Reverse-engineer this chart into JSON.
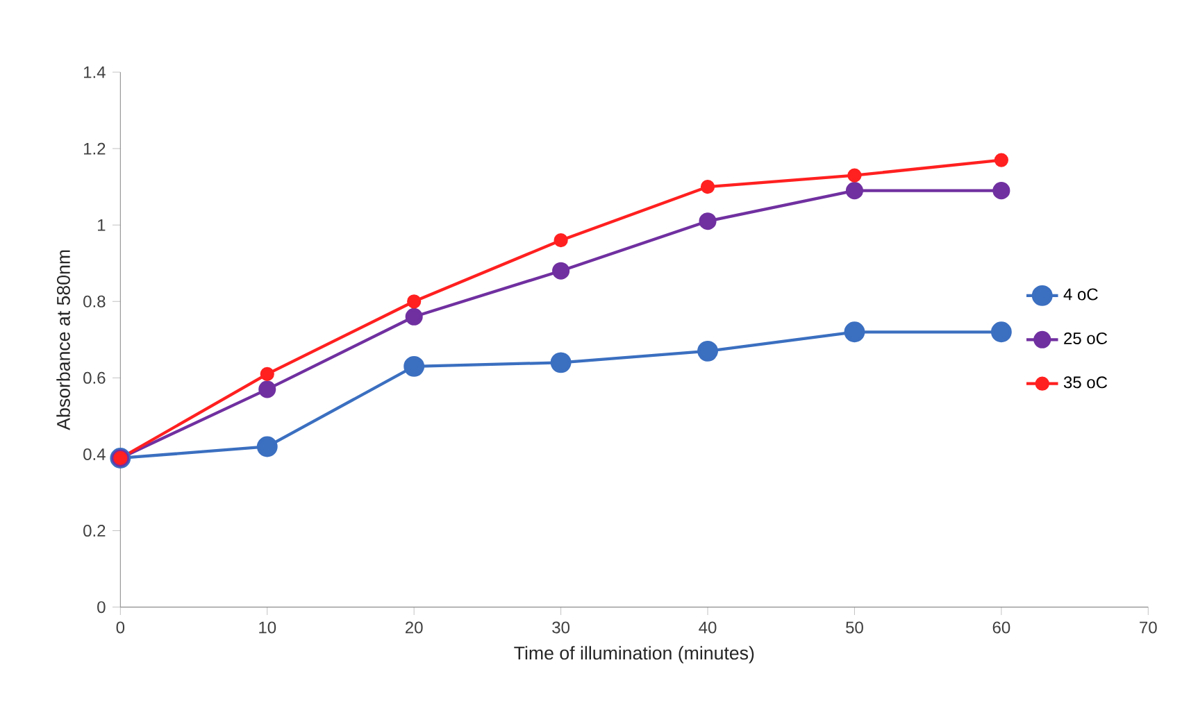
{
  "chart_data": {
    "type": "line",
    "xlabel": "Time of illumination (minutes)",
    "ylabel": "Absorbance at 580nm",
    "x": [
      0,
      10,
      20,
      30,
      40,
      50,
      60
    ],
    "series": [
      {
        "name": "4 oC",
        "color": "#3b6fc0",
        "values": [
          0.39,
          0.42,
          0.63,
          0.64,
          0.67,
          0.72,
          0.72
        ]
      },
      {
        "name": "25 oC",
        "color": "#7030a0",
        "values": [
          0.39,
          0.57,
          0.76,
          0.88,
          1.01,
          1.09,
          1.09
        ]
      },
      {
        "name": "35 oC",
        "color": "#ff2020",
        "values": [
          0.39,
          0.61,
          0.8,
          0.96,
          1.1,
          1.13,
          1.17
        ]
      }
    ],
    "xlim": [
      0,
      70
    ],
    "ylim": [
      0,
      1.4
    ],
    "xticks": [
      0,
      10,
      20,
      30,
      40,
      50,
      60,
      70
    ],
    "yticks": [
      0,
      0.2,
      0.4,
      0.6,
      0.8,
      1,
      1.2,
      1.4
    ],
    "grid": false,
    "legend": "right",
    "marker": "circle",
    "line_style": "solid"
  }
}
